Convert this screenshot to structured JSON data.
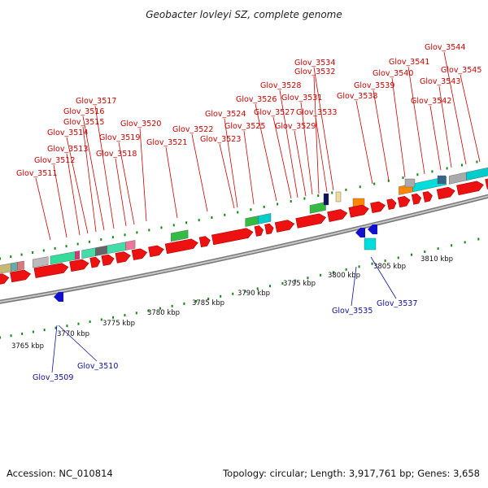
{
  "title": "Geobacter lovleyi SZ, complete genome",
  "footer": {
    "accession": "Accession: NC_010814",
    "summary": "Topology: circular; Length: 3,917,761 bp; Genes: 3,658"
  },
  "colors": {
    "forward_gene": "#ee1111",
    "reverse_gene": "#1111cc",
    "top_label": "#cc0000",
    "bottom_label": "#1010a0",
    "tick": "#118811",
    "backbone": "#999999"
  },
  "scale_labels": [
    "3765 kbp",
    "3770 kbp",
    "3775 kbp",
    "3780 kbp",
    "3785 kbp",
    "3790 kbp",
    "3795 kbp",
    "3800 kbp",
    "3805 kbp",
    "3810 kbp"
  ],
  "top_genes": [
    "Glov_3511",
    "Glov_3512",
    "Glov_3513",
    "Glov_3514",
    "Glov_3515",
    "Glov_3516",
    "Glov_3517",
    "Glov_3518",
    "Glov_3519",
    "Glov_3520",
    "Glov_3521",
    "Glov_3522",
    "Glov_3523",
    "Glov_3524",
    "Glov_3525",
    "Glov_3526",
    "Glov_3527",
    "Glov_3528",
    "Glov_3529",
    "Glov_3531",
    "Glov_3532",
    "Glov_3533",
    "Glov_3534",
    "Glov_3538",
    "Glov_3539",
    "Glov_3540",
    "Glov_3541",
    "Glov_3542",
    "Glov_3543",
    "Glov_3544",
    "Glov_3545"
  ],
  "bottom_genes": [
    "Glov_3509",
    "Glov_3510",
    "Glov_3535",
    "Glov_3537"
  ]
}
